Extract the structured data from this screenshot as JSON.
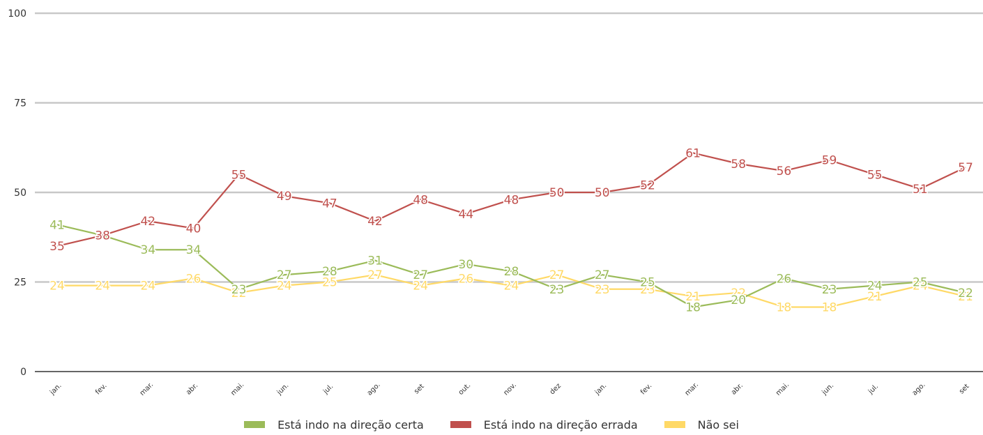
{
  "chart_data": {
    "type": "line",
    "title": "",
    "xlabel": "",
    "ylabel": "",
    "ylim": [
      0,
      100
    ],
    "yticks": [
      0,
      25,
      50,
      75,
      100
    ],
    "grid": true,
    "legend_position": "bottom",
    "categories": [
      "jan.",
      "fev.",
      "mar.",
      "abr.",
      "mai.",
      "jun.",
      "jul.",
      "ago.",
      "set",
      "out.",
      "nov.",
      "dez",
      "jan.",
      "fev.",
      "mar.",
      "abr.",
      "mai.",
      "jun.",
      "jul.",
      "ago.",
      "set"
    ],
    "series": [
      {
        "name": "Está indo na direção certa",
        "color": "#9bbb59",
        "values": [
          41,
          38,
          34,
          34,
          23,
          27,
          28,
          31,
          27,
          30,
          28,
          23,
          27,
          25,
          18,
          20,
          26,
          23,
          24,
          25,
          22
        ]
      },
      {
        "name": "Está indo na direção errada",
        "color": "#c0504d",
        "values": [
          35,
          38,
          42,
          40,
          55,
          49,
          47,
          42,
          48,
          44,
          48,
          50,
          50,
          52,
          61,
          58,
          56,
          59,
          55,
          51,
          57
        ]
      },
      {
        "name": "Não sei",
        "color": "#ffd966",
        "values": [
          24,
          24,
          24,
          26,
          22,
          24,
          25,
          27,
          24,
          26,
          24,
          27,
          23,
          23,
          21,
          22,
          18,
          18,
          21,
          24,
          21
        ]
      }
    ]
  }
}
